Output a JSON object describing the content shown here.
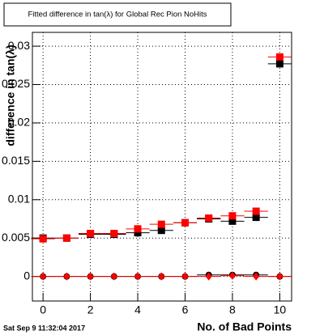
{
  "chart_data": {
    "type": "scatter",
    "title": "Fitted difference in tan(λ) for Global Rec Pion NoHits",
    "x_label": "No. of Bad Points",
    "y_label": "difference in tan(λ)",
    "footer": "Sat Sep  9 11:32:04 2017",
    "x": [
      0,
      1,
      2,
      3,
      4,
      5,
      6,
      7,
      8,
      9,
      10
    ],
    "xerr": 0.5,
    "series": [
      {
        "color": "#000000",
        "marker": "square",
        "values": [
          0.005,
          0.005,
          0.0055,
          0.0055,
          0.0057,
          0.006,
          0.007,
          0.0075,
          0.0072,
          0.0077,
          0.0277
        ]
      },
      {
        "color": "#ff0000",
        "marker": "square",
        "values": [
          0.0049,
          0.005,
          0.0056,
          0.0056,
          0.0062,
          0.0068,
          0.007,
          0.0076,
          0.0079,
          0.0085,
          0.0286
        ]
      },
      {
        "color": "#000000",
        "marker": "circle",
        "values": [
          0,
          0,
          0,
          0,
          0,
          0,
          0,
          0.0002,
          0.0002,
          0.0002,
          0
        ]
      },
      {
        "color": "#ff0000",
        "marker": "diamond",
        "values": [
          0,
          0,
          0,
          0,
          0,
          0,
          0,
          0,
          0.0001,
          0,
          0
        ]
      }
    ],
    "xlim": [
      -0.45,
      10.5
    ],
    "ylim": [
      -0.0032,
      0.0318
    ],
    "xticks": [
      0,
      2,
      4,
      6,
      8,
      10
    ],
    "yticks": [
      0,
      0.005,
      0.01,
      0.015,
      0.02,
      0.025,
      0.03
    ],
    "grid": true
  }
}
